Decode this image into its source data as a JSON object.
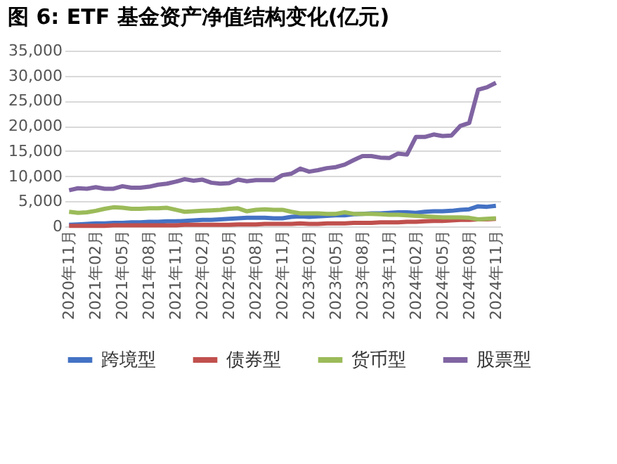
{
  "chart_data": {
    "type": "line",
    "title": "图 6:  ETF 基金资产净值结构变化(亿元)",
    "categories": [
      "2020年11月",
      null,
      null,
      "2021年02月",
      null,
      null,
      "2021年05月",
      null,
      null,
      "2021年08月",
      null,
      null,
      "2021年11月",
      null,
      null,
      "2022年02月",
      null,
      null,
      "2022年05月",
      null,
      null,
      "2022年08月",
      null,
      null,
      "2022年11月",
      null,
      null,
      "2023年02月",
      null,
      null,
      "2023年05月",
      null,
      null,
      "2023年08月",
      null,
      null,
      "2023年11月",
      null,
      null,
      "2024年02月",
      null,
      null,
      "2024年05月",
      null,
      null,
      "2024年08月",
      null,
      null,
      "2024年11月"
    ],
    "series": [
      {
        "name": "跨境型",
        "color": "#4472c4",
        "values": [
          300,
          400,
          500,
          600,
          600,
          700,
          700,
          800,
          800,
          900,
          900,
          1000,
          1000,
          1100,
          1200,
          1300,
          1300,
          1400,
          1500,
          1600,
          1700,
          1700,
          1700,
          1600,
          1600,
          1900,
          2000,
          1900,
          2000,
          2100,
          2200,
          2200,
          2400,
          2500,
          2600,
          2600,
          2700,
          2800,
          2800,
          2700,
          2900,
          3000,
          3000,
          3100,
          3300,
          3400,
          4000,
          3900,
          4100
        ]
      },
      {
        "name": "债券型",
        "color": "#c0504d",
        "values": [
          100,
          100,
          100,
          100,
          100,
          200,
          200,
          200,
          200,
          200,
          200,
          200,
          200,
          300,
          300,
          300,
          300,
          300,
          300,
          400,
          400,
          400,
          500,
          500,
          500,
          500,
          600,
          500,
          500,
          600,
          600,
          600,
          700,
          700,
          700,
          800,
          800,
          800,
          900,
          900,
          1000,
          1100,
          1100,
          1200,
          1300,
          1300,
          1400,
          1400,
          1500
        ]
      },
      {
        "name": "货币型",
        "color": "#9bbb59",
        "values": [
          2900,
          2700,
          2800,
          3100,
          3500,
          3800,
          3700,
          3500,
          3500,
          3600,
          3600,
          3700,
          3300,
          2900,
          3000,
          3100,
          3200,
          3300,
          3500,
          3600,
          3000,
          3300,
          3400,
          3300,
          3300,
          2900,
          2600,
          2600,
          2600,
          2500,
          2500,
          2800,
          2500,
          2500,
          2500,
          2400,
          2300,
          2300,
          2200,
          2100,
          2000,
          1900,
          1800,
          1800,
          1800,
          1700,
          1400,
          1500,
          1600
        ]
      },
      {
        "name": "股票型",
        "color": "#8064a2",
        "values": [
          7200,
          7600,
          7500,
          7800,
          7500,
          7500,
          8000,
          7700,
          7700,
          7900,
          8300,
          8500,
          8900,
          9400,
          9100,
          9300,
          8700,
          8500,
          8600,
          9300,
          9000,
          9200,
          9200,
          9200,
          10200,
          10500,
          11500,
          10900,
          11200,
          11600,
          11800,
          12300,
          13200,
          14000,
          14000,
          13700,
          13600,
          14500,
          14300,
          17800,
          17800,
          18300,
          18000,
          18100,
          20000,
          20600,
          27200,
          27700,
          28600
        ]
      }
    ],
    "ylim": [
      0,
      35000
    ],
    "yticks": [
      0,
      {
        "value": 5000,
        "label": "5,000"
      },
      {
        "value": 10000,
        "label": "10,000"
      },
      {
        "value": 15000,
        "label": "15,000"
      },
      {
        "value": 20000,
        "label": "20,000"
      },
      {
        "value": 25000,
        "label": "25,000"
      },
      {
        "value": 30000,
        "label": "30,000"
      },
      {
        "value": 35000,
        "label": "35,000"
      }
    ],
    "grid": "y",
    "legend": "bottom",
    "marker": "none",
    "line_style": "solid"
  }
}
